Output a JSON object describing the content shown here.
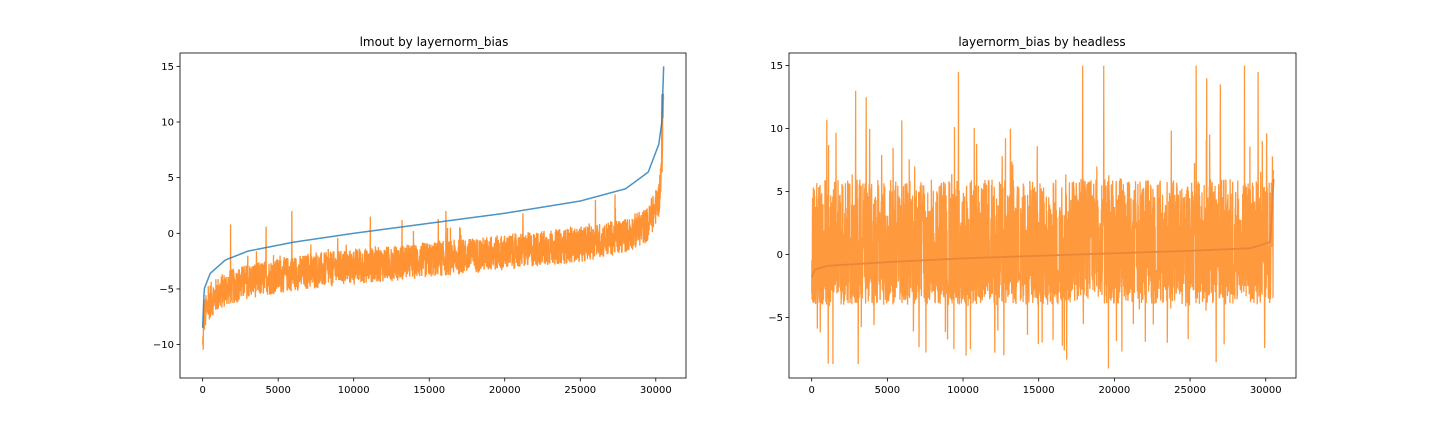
{
  "chart_data": [
    {
      "type": "line",
      "title": "lmout by layernorm_bias",
      "xlabel": "",
      "ylabel": "",
      "xlim": [
        -1500,
        32000
      ],
      "ylim": [
        -13,
        16.2
      ],
      "xticks": [
        0,
        5000,
        10000,
        15000,
        20000,
        25000,
        30000
      ],
      "yticks": [
        -10,
        -5,
        0,
        5,
        10,
        15
      ],
      "grid": false,
      "n_points": 30522,
      "series": [
        {
          "color": "#1f77b4",
          "description_of_shape": "sorted increasing curve",
          "x": [
            0,
            100,
            500,
            1500,
            3000,
            6000,
            10000,
            15000,
            20000,
            25000,
            28000,
            29500,
            30200,
            30400,
            30521
          ],
          "values": [
            -8.5,
            -5.0,
            -3.6,
            -2.4,
            -1.6,
            -0.8,
            0.0,
            0.9,
            1.8,
            2.9,
            4.0,
            5.5,
            8.0,
            10.0,
            15.0
          ]
        },
        {
          "color": "#ff7f0e",
          "description_of_shape": "noisy signal following the sorted curve, offset downward",
          "center_x": [
            0,
            100,
            500,
            1500,
            3000,
            6000,
            10000,
            15000,
            20000,
            25000,
            28000,
            29500,
            30200,
            30400,
            30521
          ],
          "center_values": [
            -10.5,
            -7.5,
            -6.0,
            -5.0,
            -4.3,
            -3.6,
            -3.0,
            -2.4,
            -1.7,
            -1.0,
            -0.2,
            0.8,
            3.0,
            6.0,
            12.5
          ],
          "band_half_width": 1.6,
          "spikes": [
            {
              "x": 1850,
              "y": 0.8
            },
            {
              "x": 4200,
              "y": 0.6
            },
            {
              "x": 5900,
              "y": 2.0
            },
            {
              "x": 11100,
              "y": 1.5
            },
            {
              "x": 13200,
              "y": 1.2
            },
            {
              "x": 15600,
              "y": 1.3
            },
            {
              "x": 16100,
              "y": 2.0
            },
            {
              "x": 21200,
              "y": 1.8
            },
            {
              "x": 26000,
              "y": 3.0
            },
            {
              "x": 27300,
              "y": 3.5
            },
            {
              "x": 30400,
              "y": 12.5
            }
          ]
        }
      ]
    },
    {
      "type": "line",
      "title": "layernorm_bias by headless",
      "xlabel": "",
      "ylabel": "",
      "xlim": [
        -1500,
        32000
      ],
      "ylim": [
        -9.8,
        16.0
      ],
      "xticks": [
        0,
        5000,
        10000,
        15000,
        20000,
        25000,
        30000
      ],
      "yticks": [
        -5,
        0,
        5,
        10,
        15
      ],
      "grid": false,
      "n_points": 30522,
      "series": [
        {
          "color": "#ff7f0e",
          "description_of_shape": "dense noisy signal around a flat sorted curve",
          "center_x": [
            0,
            200,
            1000,
            5000,
            10000,
            15000,
            20000,
            25000,
            29000,
            30300,
            30521
          ],
          "center_values": [
            -1.8,
            -1.2,
            -0.9,
            -0.6,
            -0.3,
            -0.1,
            0.1,
            0.3,
            0.5,
            1.0,
            6.0
          ],
          "band_upper": 5.0,
          "band_lower": -3.0,
          "spikes": [
            {
              "x": 1000,
              "y": 10.7
            },
            {
              "x": 9700,
              "y": 14.5
            },
            {
              "x": 17900,
              "y": 15.0
            },
            {
              "x": 19300,
              "y": 15.0
            },
            {
              "x": 25400,
              "y": 15.0
            },
            {
              "x": 26100,
              "y": 14.0
            },
            {
              "x": 27000,
              "y": 13.5
            },
            {
              "x": 28600,
              "y": 15.0
            },
            {
              "x": 29500,
              "y": 14.5
            },
            {
              "x": 2900,
              "y": 13.0
            },
            {
              "x": 3600,
              "y": 12.5
            },
            {
              "x": 1400,
              "y": -8.7
            },
            {
              "x": 12100,
              "y": -7.8
            },
            {
              "x": 12700,
              "y": -8.0
            },
            {
              "x": 9400,
              "y": -7.5
            },
            {
              "x": 20500,
              "y": -7.7
            },
            {
              "x": 23500,
              "y": -7.0
            }
          ]
        },
        {
          "color": "#ff7f0e",
          "description_of_shape": "sorted smooth curve drawn on top (darker orange)",
          "x": [
            0,
            200,
            1000,
            5000,
            10000,
            15000,
            20000,
            25000,
            29000,
            30300,
            30521
          ],
          "values": [
            -1.8,
            -1.2,
            -0.9,
            -0.6,
            -0.3,
            -0.1,
            0.1,
            0.3,
            0.5,
            1.0,
            6.0
          ]
        }
      ]
    }
  ]
}
